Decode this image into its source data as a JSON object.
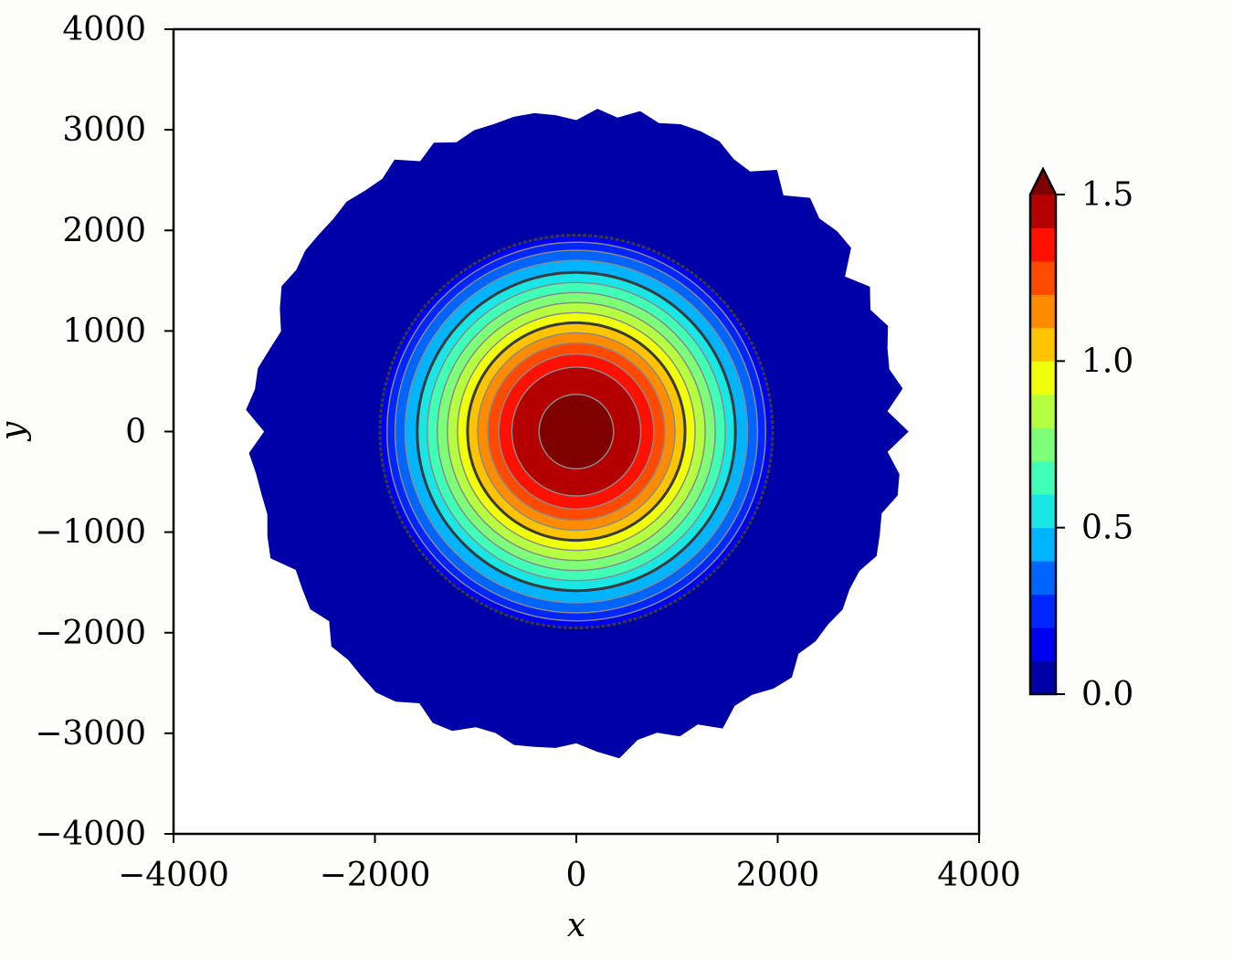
{
  "chart_data": {
    "type": "filled-contour",
    "xlabel": "x",
    "ylabel": "y",
    "xlim": [
      -4000,
      4000
    ],
    "ylim": [
      -4000,
      4000
    ],
    "xticks": [
      -4000,
      -2000,
      0,
      2000,
      4000
    ],
    "yticks": [
      -4000,
      -3000,
      -2000,
      -1000,
      0,
      1000,
      2000,
      3000,
      4000
    ],
    "xtick_labels": [
      "−4000",
      "−2000",
      "0",
      "2000",
      "4000"
    ],
    "ytick_labels": [
      "−4000",
      "−3000",
      "−2000",
      "−1000",
      "0",
      "1000",
      "2000",
      "3000",
      "4000"
    ],
    "field": {
      "center": [
        0,
        0
      ],
      "peak_value": 1.5,
      "max_radius": 3300,
      "levels": [
        0.0,
        0.1,
        0.2,
        0.3,
        0.4,
        0.5,
        0.6,
        0.7,
        0.8,
        0.9,
        1.0,
        1.1,
        1.2,
        1.3,
        1.4,
        1.5
      ],
      "level_radii": [
        1950,
        1880,
        1800,
        1700,
        1580,
        1480,
        1380,
        1280,
        1180,
        1080,
        980,
        880,
        770,
        640,
        370
      ]
    },
    "colorbar": {
      "min": 0.0,
      "max": 1.5,
      "extend": "max",
      "ticks": [
        0.0,
        0.5,
        1.0,
        1.5
      ],
      "tick_labels": [
        "0.0",
        "0.5",
        "1.0",
        "1.5"
      ],
      "colors": [
        "#0000a8",
        "#0000f0",
        "#0026ff",
        "#0064ff",
        "#00b4ff",
        "#1ae6e6",
        "#40ffb6",
        "#7dff7a",
        "#b6ff40",
        "#f0ff0a",
        "#ffc400",
        "#ff8c00",
        "#ff4a00",
        "#ff1000",
        "#b40000"
      ],
      "extend_color": "#800000"
    },
    "grid": false
  }
}
